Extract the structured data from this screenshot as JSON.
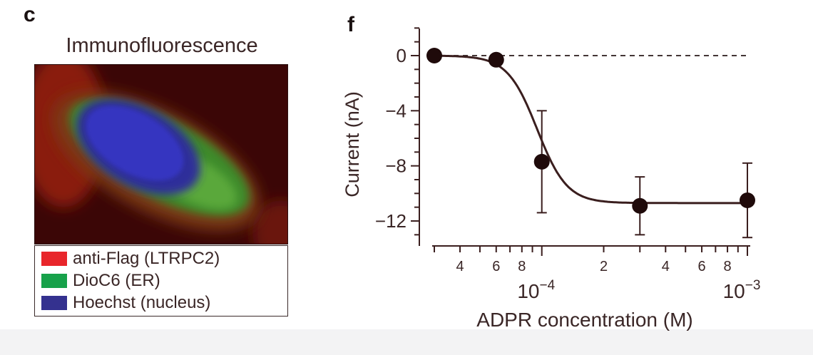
{
  "panels": {
    "c": {
      "letter": "c",
      "title": "Immunofluorescence",
      "legend": [
        {
          "label": "anti-Flag (LTRPC2)",
          "color": "#e8262b"
        },
        {
          "label": "DioC6 (ER)",
          "color": "#17a14a"
        },
        {
          "label": "Hoechst (nucleus)",
          "color": "#34318f"
        }
      ]
    },
    "f": {
      "letter": "f"
    }
  },
  "chart_data": {
    "type": "scatter",
    "xlabel": "ADPR concentration (M)",
    "ylabel": "Current (nA)",
    "xscale": "log",
    "xlim": [
      2e-05,
      0.001
    ],
    "ylim": [
      -13,
      2
    ],
    "y_ticks": [
      0,
      -4,
      -8,
      -12
    ],
    "y_tick_labels": [
      "0",
      "−4",
      "−8",
      "−12"
    ],
    "x_minor_tick_labels": [
      {
        "x": 4e-05,
        "label": "4"
      },
      {
        "x": 6e-05,
        "label": "6"
      },
      {
        "x": 8e-05,
        "label": "8"
      },
      {
        "x": 0.0002,
        "label": "2"
      },
      {
        "x": 0.0004,
        "label": "4"
      },
      {
        "x": 0.0006,
        "label": "6"
      },
      {
        "x": 0.0008,
        "label": "8"
      }
    ],
    "x_major_tick_labels": [
      {
        "x": 0.0001,
        "base": "10",
        "exp": "−4"
      },
      {
        "x": 0.001,
        "base": "10",
        "exp": "−3"
      }
    ],
    "reference_line": {
      "y": 0,
      "style": "dashed"
    },
    "series": [
      {
        "x": [
          3e-05,
          6e-05,
          0.0001,
          0.0003,
          0.001
        ],
        "y": [
          0,
          -0.3,
          -7.7,
          -10.9,
          -10.5
        ],
        "err_low": [
          0,
          0,
          3.7,
          2.1,
          2.7
        ],
        "err_high": [
          0,
          0,
          3.7,
          2.1,
          2.7
        ]
      }
    ],
    "fit_curve": {
      "top": 0,
      "bottom": -10.7,
      "ec50": 9.5e-05,
      "hill": 6
    },
    "colors": {
      "marker": "#1f0a0a",
      "line": "#3a1e1e"
    },
    "grid": false,
    "legend": "none"
  }
}
